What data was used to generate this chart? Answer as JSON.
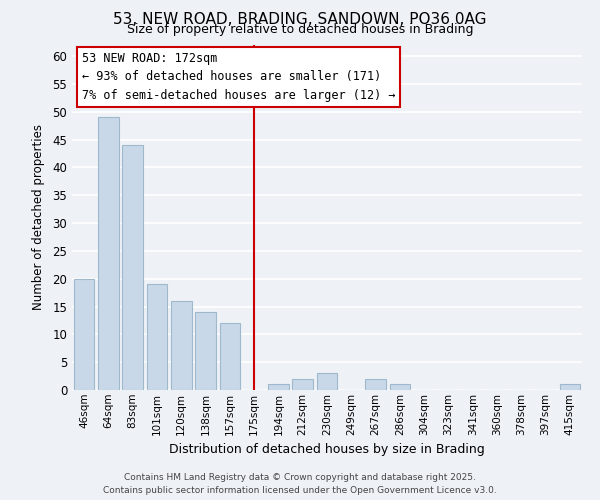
{
  "title": "53, NEW ROAD, BRADING, SANDOWN, PO36 0AG",
  "subtitle": "Size of property relative to detached houses in Brading",
  "xlabel": "Distribution of detached houses by size in Brading",
  "ylabel": "Number of detached properties",
  "bar_labels": [
    "46sqm",
    "64sqm",
    "83sqm",
    "101sqm",
    "120sqm",
    "138sqm",
    "157sqm",
    "175sqm",
    "194sqm",
    "212sqm",
    "230sqm",
    "249sqm",
    "267sqm",
    "286sqm",
    "304sqm",
    "323sqm",
    "341sqm",
    "360sqm",
    "378sqm",
    "397sqm",
    "415sqm"
  ],
  "bar_values": [
    20,
    49,
    44,
    19,
    16,
    14,
    12,
    0,
    1,
    2,
    3,
    0,
    2,
    1,
    0,
    0,
    0,
    0,
    0,
    0,
    1
  ],
  "bar_color": "#c8d8e8",
  "bar_edge_color": "#a0b8cc",
  "vline_index": 7,
  "vline_color": "#cc0000",
  "ylim": [
    0,
    62
  ],
  "yticks": [
    0,
    5,
    10,
    15,
    20,
    25,
    30,
    35,
    40,
    45,
    50,
    55,
    60
  ],
  "annotation_title": "53 NEW ROAD: 172sqm",
  "annotation_line1": "← 93% of detached houses are smaller (171)",
  "annotation_line2": "7% of semi-detached houses are larger (12) →",
  "annotation_box_color": "#ffffff",
  "annotation_border_color": "#cc0000",
  "footer_line1": "Contains HM Land Registry data © Crown copyright and database right 2025.",
  "footer_line2": "Contains public sector information licensed under the Open Government Licence v3.0.",
  "bg_color": "#eef2f7",
  "grid_color": "#ffffff"
}
